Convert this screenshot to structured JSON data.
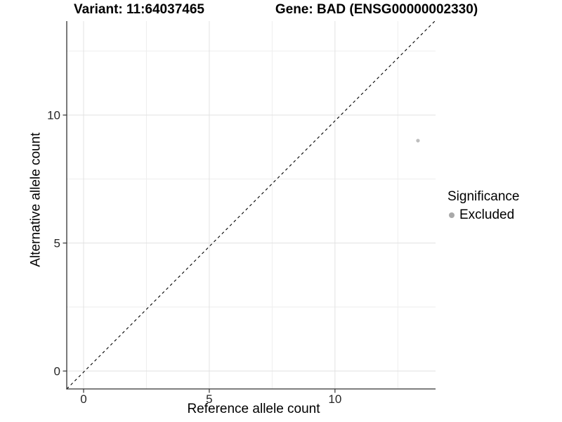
{
  "titles": {
    "variant": "Variant: 11:64037465",
    "gene": "Gene: BAD (ENSG00000002330)"
  },
  "axes": {
    "x": {
      "title": "Reference allele count"
    },
    "y": {
      "title": "Alternative allele count"
    }
  },
  "legend": {
    "title": "Significance",
    "items": [
      {
        "label": "Excluded",
        "color": "#a9a9a9",
        "shape": "circle"
      }
    ]
  },
  "chart_data": {
    "type": "scatter",
    "title": "Variant: 11:64037465    Gene: BAD (ENSG00000002330)",
    "xlabel": "Reference allele count",
    "ylabel": "Alternative allele count",
    "series": [
      {
        "name": "Excluded",
        "color": "#bebebe",
        "points": [
          {
            "x": 13.3,
            "y": 9.0
          }
        ]
      }
    ],
    "reference_line": {
      "kind": "identity y=x",
      "style": "dashed",
      "color": "#000000"
    },
    "xlim": [
      -0.67,
      14.0
    ],
    "ylim": [
      -0.7,
      13.67
    ],
    "x_major_ticks": [
      0,
      5,
      10
    ],
    "y_major_ticks": [
      0,
      5,
      10
    ],
    "x_minor_gridlines": [
      2.5,
      7.5,
      12.5
    ],
    "y_minor_gridlines": [
      2.5,
      7.5,
      12.5
    ],
    "grid": true,
    "legend_position": "right",
    "colors": {
      "axis_line": "#333333",
      "tick_label": "#262626",
      "major_grid": "#e2e2e2",
      "minor_grid": "#eeeeee",
      "point": "#bebebe"
    }
  }
}
